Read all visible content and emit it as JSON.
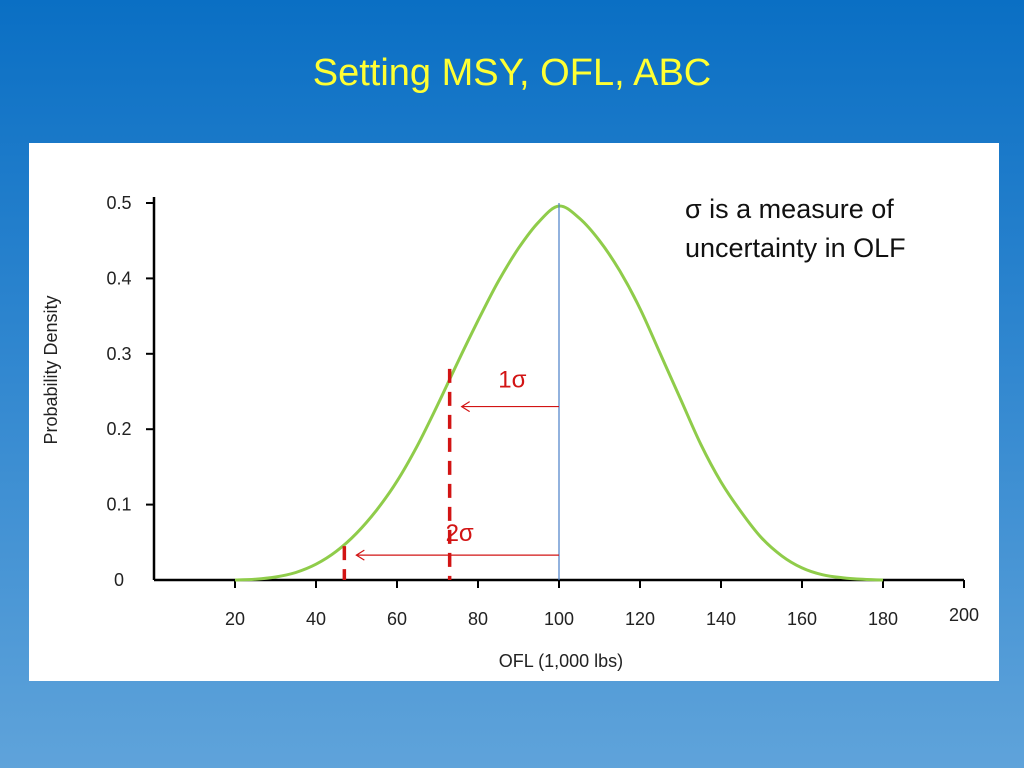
{
  "slide": {
    "title": "Setting MSY, OFL, ABC"
  },
  "chart_data": {
    "type": "line",
    "title": "",
    "xlabel": "OFL (1,000 lbs)",
    "ylabel": "Probability Density",
    "xlim": [
      0,
      200
    ],
    "ylim": [
      0,
      0.5
    ],
    "x_ticks": [
      {
        "value": 20,
        "label": "20"
      },
      {
        "value": 40,
        "label": "40"
      },
      {
        "value": 60,
        "label": "60"
      },
      {
        "value": 80,
        "label": "80"
      },
      {
        "value": 100,
        "label": "100"
      },
      {
        "value": 120,
        "label": "120"
      },
      {
        "value": 140,
        "label": "140"
      },
      {
        "value": 160,
        "label": "160"
      },
      {
        "value": 180,
        "label": "180"
      },
      {
        "value": 200,
        "label": "200"
      }
    ],
    "y_ticks": [
      {
        "value": 0,
        "label": "0"
      },
      {
        "value": 0.1,
        "label": "0.1"
      },
      {
        "value": 0.2,
        "label": "0.2"
      },
      {
        "value": 0.3,
        "label": "0.3"
      },
      {
        "value": 0.4,
        "label": "0.4"
      },
      {
        "value": 0.5,
        "label": "0.5"
      }
    ],
    "curve": {
      "x": [
        20,
        25,
        30,
        35,
        40,
        45,
        50,
        55,
        60,
        65,
        70,
        75,
        80,
        85,
        90,
        95,
        100,
        105,
        110,
        115,
        120,
        125,
        130,
        135,
        140,
        145,
        150,
        155,
        160,
        165,
        170,
        175,
        180
      ],
      "y": [
        0,
        0.001,
        0.004,
        0.01,
        0.021,
        0.038,
        0.062,
        0.093,
        0.131,
        0.178,
        0.232,
        0.289,
        0.344,
        0.396,
        0.44,
        0.475,
        0.496,
        0.48,
        0.45,
        0.41,
        0.36,
        0.3,
        0.24,
        0.18,
        0.13,
        0.09,
        0.056,
        0.032,
        0.016,
        0.007,
        0.003,
        0.001,
        0
      ],
      "color": "#8fcc4a"
    },
    "mean_line": {
      "x": 100,
      "color": "#4a7fc9"
    },
    "sigma_markers": [
      {
        "label": "1σ",
        "x": 73,
        "y_top": 0.28,
        "arrow_y": 0.23,
        "label_y": 0.255,
        "color": "#d21414"
      },
      {
        "label": "2σ",
        "x": 47,
        "y_top": 0.045,
        "arrow_y": 0.033,
        "label_y": 0.052,
        "color": "#d21414"
      }
    ],
    "annotation": {
      "line1": "σ is a measure of",
      "line2": "uncertainty in OLF"
    }
  }
}
